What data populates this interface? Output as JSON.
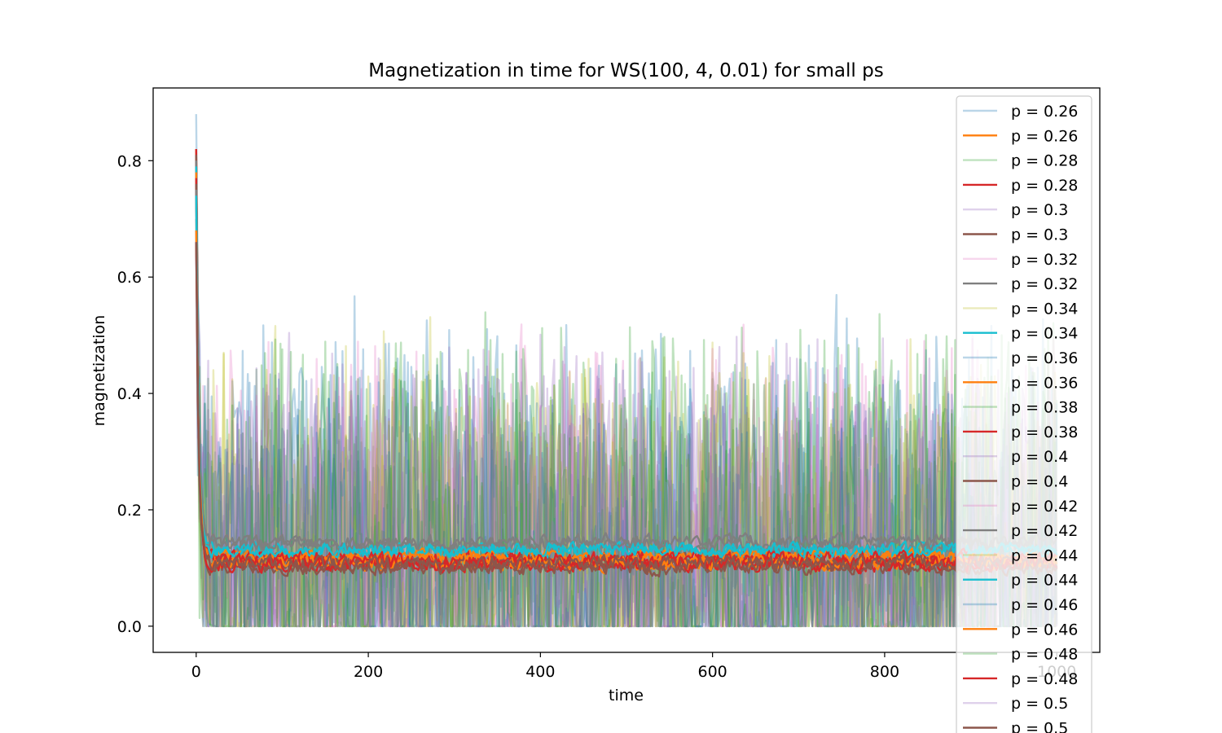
{
  "chart_data": {
    "type": "line",
    "title": "Magnetization in time for WS(100, 4, 0.01) for small ps",
    "xlabel": "time",
    "ylabel": "magnetization",
    "xlim": [
      -50,
      1050
    ],
    "ylim": [
      -0.045,
      0.925
    ],
    "xticks": [
      0,
      200,
      400,
      600,
      800,
      1000
    ],
    "yticks": [
      0.0,
      0.2,
      0.4,
      0.6,
      0.8
    ],
    "ytick_labels": [
      "0.0",
      "0.2",
      "0.4",
      "0.6",
      "0.8"
    ],
    "grid": false,
    "legend_placement": "top-right",
    "x": {
      "start": 0,
      "end": 1000,
      "step": 2
    },
    "series": [
      {
        "name": "p = 0.26",
        "color": "#1f77b4",
        "opacity": 0.3,
        "kind": "noisy",
        "initial": 0.88,
        "level": 0.14,
        "amp": 0.34,
        "low": 0.0,
        "high": 0.58,
        "decay": 3
      },
      {
        "name": "p = 0.26",
        "color": "#ff7f0e",
        "opacity": 1.0,
        "kind": "smooth",
        "initial": 0.82,
        "level": 0.112,
        "amp": 0.012,
        "low": 0.09,
        "high": 0.15,
        "decay": 3
      },
      {
        "name": "p = 0.28",
        "color": "#2ca02c",
        "opacity": 0.3,
        "kind": "noisy",
        "initial": 0.8,
        "level": 0.13,
        "amp": 0.36,
        "low": 0.0,
        "high": 0.56,
        "decay": 3
      },
      {
        "name": "p = 0.28",
        "color": "#d62728",
        "opacity": 1.0,
        "kind": "smooth",
        "initial": 0.82,
        "level": 0.11,
        "amp": 0.012,
        "low": 0.09,
        "high": 0.16,
        "decay": 3
      },
      {
        "name": "p = 0.3",
        "color": "#9467bd",
        "opacity": 0.3,
        "kind": "noisy",
        "initial": 0.78,
        "level": 0.13,
        "amp": 0.34,
        "low": 0.0,
        "high": 0.52,
        "decay": 3
      },
      {
        "name": "p = 0.3",
        "color": "#8c564b",
        "opacity": 1.0,
        "kind": "smooth",
        "initial": 0.81,
        "level": 0.108,
        "amp": 0.012,
        "low": 0.09,
        "high": 0.15,
        "decay": 3
      },
      {
        "name": "p = 0.32",
        "color": "#e377c2",
        "opacity": 0.3,
        "kind": "noisy",
        "initial": 0.76,
        "level": 0.13,
        "amp": 0.34,
        "low": 0.0,
        "high": 0.52,
        "decay": 3
      },
      {
        "name": "p = 0.32",
        "color": "#7f7f7f",
        "opacity": 1.0,
        "kind": "smooth",
        "initial": 0.8,
        "level": 0.14,
        "amp": 0.01,
        "low": 0.12,
        "high": 0.17,
        "decay": 3
      },
      {
        "name": "p = 0.34",
        "color": "#bcbd22",
        "opacity": 0.3,
        "kind": "noisy",
        "initial": 0.74,
        "level": 0.13,
        "amp": 0.34,
        "low": 0.0,
        "high": 0.56,
        "decay": 3
      },
      {
        "name": "p = 0.34",
        "color": "#17becf",
        "opacity": 1.0,
        "kind": "smooth",
        "initial": 0.79,
        "level": 0.13,
        "amp": 0.01,
        "low": 0.11,
        "high": 0.16,
        "decay": 3
      },
      {
        "name": "p = 0.36",
        "color": "#1f77b4",
        "opacity": 0.3,
        "kind": "noisy",
        "initial": 0.72,
        "level": 0.13,
        "amp": 0.32,
        "low": 0.0,
        "high": 0.5,
        "decay": 3
      },
      {
        "name": "p = 0.36",
        "color": "#ff7f0e",
        "opacity": 1.0,
        "kind": "smooth",
        "initial": 0.78,
        "level": 0.118,
        "amp": 0.01,
        "low": 0.1,
        "high": 0.15,
        "decay": 3
      },
      {
        "name": "p = 0.38",
        "color": "#2ca02c",
        "opacity": 0.3,
        "kind": "noisy",
        "initial": 0.7,
        "level": 0.13,
        "amp": 0.34,
        "low": 0.0,
        "high": 0.54,
        "decay": 3
      },
      {
        "name": "p = 0.38",
        "color": "#d62728",
        "opacity": 1.0,
        "kind": "smooth",
        "initial": 0.77,
        "level": 0.114,
        "amp": 0.012,
        "low": 0.09,
        "high": 0.16,
        "decay": 3
      },
      {
        "name": "p = 0.4",
        "color": "#9467bd",
        "opacity": 0.3,
        "kind": "noisy",
        "initial": 0.7,
        "level": 0.13,
        "amp": 0.32,
        "low": 0.0,
        "high": 0.5,
        "decay": 3
      },
      {
        "name": "p = 0.4",
        "color": "#8c564b",
        "opacity": 1.0,
        "kind": "smooth",
        "initial": 0.76,
        "level": 0.104,
        "amp": 0.012,
        "low": 0.08,
        "high": 0.14,
        "decay": 3
      },
      {
        "name": "p = 0.42",
        "color": "#e377c2",
        "opacity": 0.3,
        "kind": "noisy",
        "initial": 0.68,
        "level": 0.13,
        "amp": 0.32,
        "low": 0.0,
        "high": 0.5,
        "decay": 3
      },
      {
        "name": "p = 0.42",
        "color": "#7f7f7f",
        "opacity": 1.0,
        "kind": "smooth",
        "initial": 0.75,
        "level": 0.145,
        "amp": 0.01,
        "low": 0.12,
        "high": 0.17,
        "decay": 3
      },
      {
        "name": "p = 0.44",
        "color": "#bcbd22",
        "opacity": 0.3,
        "kind": "noisy",
        "initial": 0.68,
        "level": 0.13,
        "amp": 0.3,
        "low": 0.0,
        "high": 0.46,
        "decay": 3
      },
      {
        "name": "p = 0.44",
        "color": "#17becf",
        "opacity": 1.0,
        "kind": "smooth",
        "initial": 0.74,
        "level": 0.13,
        "amp": 0.01,
        "low": 0.11,
        "high": 0.16,
        "decay": 3
      },
      {
        "name": "p = 0.46",
        "color": "#1f77b4",
        "opacity": 0.3,
        "kind": "noisy",
        "initial": 0.66,
        "level": 0.13,
        "amp": 0.3,
        "low": 0.0,
        "high": 0.46,
        "decay": 3
      },
      {
        "name": "p = 0.46",
        "color": "#ff7f0e",
        "opacity": 1.0,
        "kind": "smooth",
        "initial": 0.68,
        "level": 0.112,
        "amp": 0.01,
        "low": 0.09,
        "high": 0.14,
        "decay": 3
      },
      {
        "name": "p = 0.48",
        "color": "#2ca02c",
        "opacity": 0.3,
        "kind": "noisy",
        "initial": 0.66,
        "level": 0.13,
        "amp": 0.34,
        "low": 0.0,
        "high": 0.54,
        "decay": 3
      },
      {
        "name": "p = 0.48",
        "color": "#d62728",
        "opacity": 1.0,
        "kind": "smooth",
        "initial": 0.66,
        "level": 0.11,
        "amp": 0.012,
        "low": 0.09,
        "high": 0.16,
        "decay": 3
      },
      {
        "name": "p = 0.5",
        "color": "#9467bd",
        "opacity": 0.3,
        "kind": "noisy",
        "initial": 0.64,
        "level": 0.13,
        "amp": 0.3,
        "low": 0.0,
        "high": 0.48,
        "decay": 3
      },
      {
        "name": "p = 0.5",
        "color": "#8c564b",
        "opacity": 1.0,
        "kind": "smooth",
        "initial": 0.66,
        "level": 0.106,
        "amp": 0.012,
        "low": 0.08,
        "high": 0.14,
        "decay": 3
      }
    ]
  }
}
